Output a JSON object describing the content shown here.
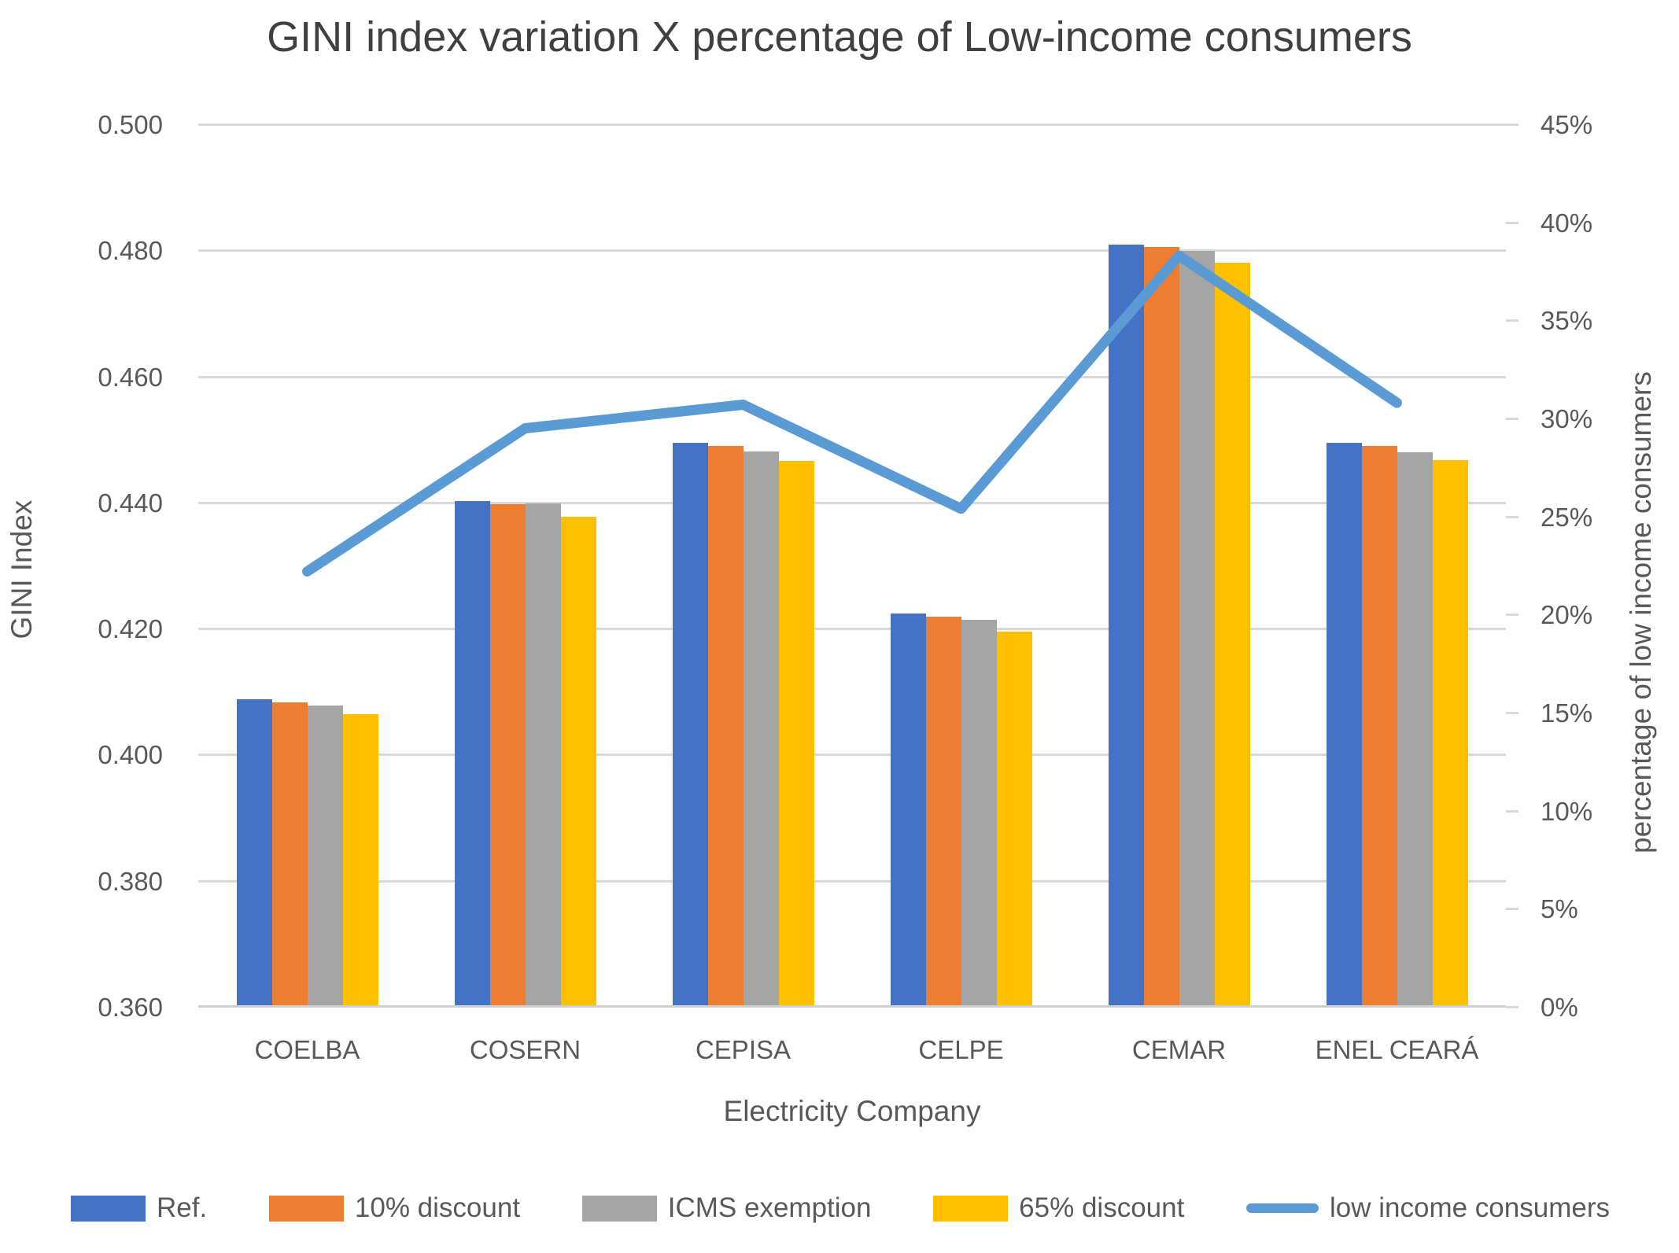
{
  "title": "GINI index variation  X percentage of Low-income consumers",
  "colors": {
    "ref": "#4472C4",
    "discount10": "#ED7D31",
    "icms": "#A5A5A5",
    "discount65": "#FFC000",
    "line": "#5B9BD5",
    "gridline": "#D9D9D9",
    "text": "#595959",
    "title_text": "#404040"
  },
  "chart_data": {
    "type": "bar",
    "subtype": "grouped-bars-with-line-overlay",
    "title": "GINI index variation  X percentage of Low-income consumers",
    "categories": [
      "COELBA",
      "COSERN",
      "CEPISA",
      "CELPE",
      "CEMAR",
      "ENEL CEARÁ"
    ],
    "series": [
      {
        "name": "Ref.",
        "type": "bar",
        "axis": "left",
        "color": "#4472C4",
        "values": [
          0.4088,
          0.4402,
          0.4495,
          0.4224,
          0.4809,
          0.4495
        ]
      },
      {
        "name": "10% discount",
        "type": "bar",
        "axis": "left",
        "color": "#ED7D31",
        "values": [
          0.4083,
          0.4397,
          0.449,
          0.4219,
          0.4805,
          0.449
        ]
      },
      {
        "name": "ICMS exemption",
        "type": "bar",
        "axis": "left",
        "color": "#A5A5A5",
        "values": [
          0.4078,
          0.4398,
          0.4481,
          0.4214,
          0.4799,
          0.448
        ]
      },
      {
        "name": "65% discount",
        "type": "bar",
        "axis": "left",
        "color": "#FFC000",
        "values": [
          0.4064,
          0.4377,
          0.4466,
          0.4195,
          0.478,
          0.4467
        ]
      },
      {
        "name": "low income consumers",
        "type": "line",
        "axis": "right",
        "color": "#5B9BD5",
        "values": [
          22.2,
          29.5,
          30.7,
          25.4,
          38.3,
          30.8
        ]
      }
    ],
    "left_axis": {
      "title": "GINI Index",
      "min": 0.36,
      "max": 0.5,
      "step": 0.02,
      "tick_labels": [
        "0.500",
        "0.480",
        "0.460",
        "0.440",
        "0.420",
        "0.400",
        "0.380",
        "0.360"
      ]
    },
    "right_axis": {
      "title": "percentage  of low income consumers",
      "min": 0,
      "max": 45,
      "step": 5,
      "tick_labels": [
        "45%",
        "40%",
        "35%",
        "30%",
        "25%",
        "20%",
        "15%",
        "10%",
        "5%",
        "0%"
      ]
    },
    "x_axis": {
      "title": "Electricity Company"
    },
    "grid": "horizontal",
    "legend_position": "bottom"
  }
}
